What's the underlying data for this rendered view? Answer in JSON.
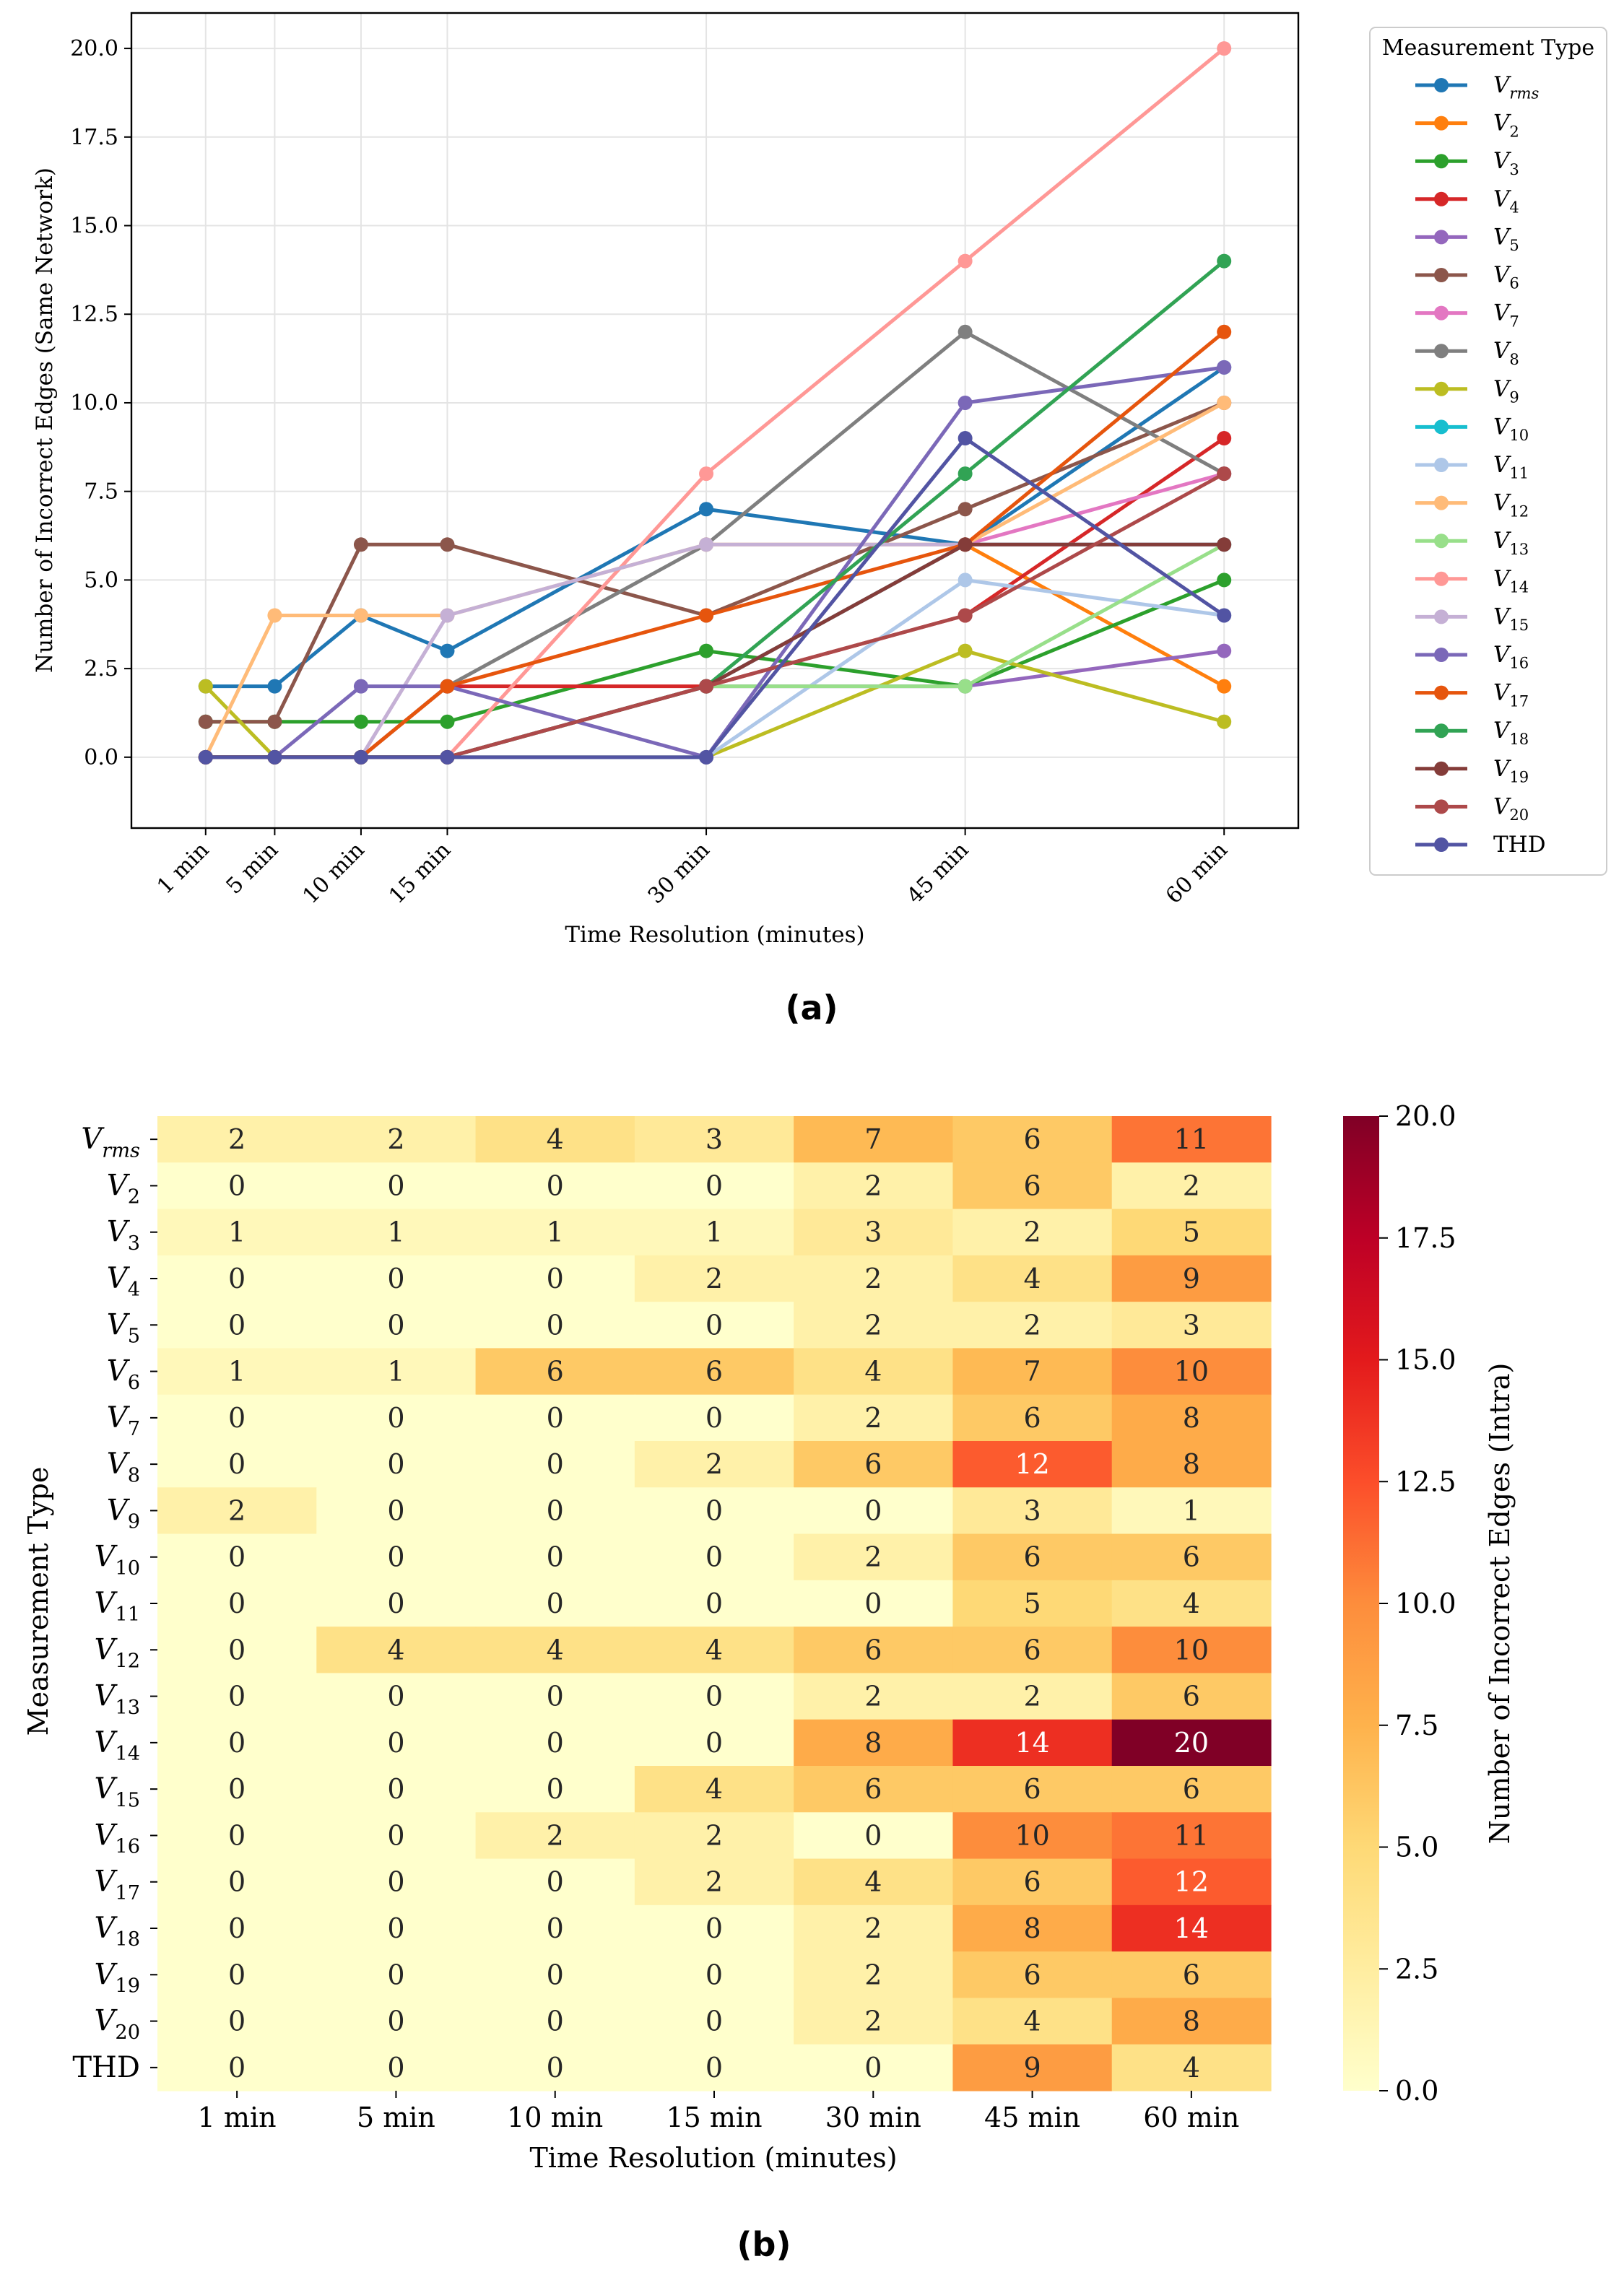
{
  "chart_data": [
    {
      "type": "line",
      "panel_label": "(a)",
      "xlabel": "Time Resolution (minutes)",
      "ylabel": "Number of Incorrect Edges (Same Network)",
      "categories": [
        "1 min",
        "5 min",
        "10 min",
        "15 min",
        "30 min",
        "45 min",
        "60 min"
      ],
      "x": [
        1,
        5,
        10,
        15,
        30,
        45,
        60
      ],
      "ylim": [
        -2,
        21
      ],
      "yticks": [
        "0.0",
        "2.5",
        "5.0",
        "7.5",
        "10.0",
        "12.5",
        "15.0",
        "17.5",
        "20.0"
      ],
      "grid": true,
      "legend_title": "Measurement Type",
      "legend_position": "outside-right",
      "series": [
        {
          "name": "V",
          "sub": "rms",
          "color": "#1f77b4",
          "values": [
            2,
            2,
            4,
            3,
            7,
            6,
            11
          ]
        },
        {
          "name": "V",
          "sub": "2",
          "color": "#ff7f0e",
          "values": [
            0,
            0,
            0,
            0,
            2,
            6,
            2
          ]
        },
        {
          "name": "V",
          "sub": "3",
          "color": "#2ca02c",
          "values": [
            1,
            1,
            1,
            1,
            3,
            2,
            5
          ]
        },
        {
          "name": "V",
          "sub": "4",
          "color": "#d62728",
          "values": [
            0,
            0,
            0,
            2,
            2,
            4,
            9
          ]
        },
        {
          "name": "V",
          "sub": "5",
          "color": "#9467bd",
          "values": [
            0,
            0,
            0,
            0,
            2,
            2,
            3
          ]
        },
        {
          "name": "V",
          "sub": "6",
          "color": "#8c564b",
          "values": [
            1,
            1,
            6,
            6,
            4,
            7,
            10
          ]
        },
        {
          "name": "V",
          "sub": "7",
          "color": "#e377c2",
          "values": [
            0,
            0,
            0,
            0,
            2,
            6,
            8
          ]
        },
        {
          "name": "V",
          "sub": "8",
          "color": "#7f7f7f",
          "values": [
            0,
            0,
            0,
            2,
            6,
            12,
            8
          ]
        },
        {
          "name": "V",
          "sub": "9",
          "color": "#bcbd22",
          "values": [
            2,
            0,
            0,
            0,
            0,
            3,
            1
          ]
        },
        {
          "name": "V",
          "sub": "10",
          "color": "#17becf",
          "values": [
            0,
            0,
            0,
            0,
            2,
            6,
            6
          ]
        },
        {
          "name": "V",
          "sub": "11",
          "color": "#aec7e8",
          "values": [
            0,
            0,
            0,
            0,
            0,
            5,
            4
          ]
        },
        {
          "name": "V",
          "sub": "12",
          "color": "#ffbb78",
          "values": [
            0,
            4,
            4,
            4,
            6,
            6,
            10
          ]
        },
        {
          "name": "V",
          "sub": "13",
          "color": "#98df8a",
          "values": [
            0,
            0,
            0,
            0,
            2,
            2,
            6
          ]
        },
        {
          "name": "V",
          "sub": "14",
          "color": "#ff9896",
          "values": [
            0,
            0,
            0,
            0,
            8,
            14,
            20
          ]
        },
        {
          "name": "V",
          "sub": "15",
          "color": "#c5b0d5",
          "values": [
            0,
            0,
            0,
            4,
            6,
            6,
            6
          ]
        },
        {
          "name": "V",
          "sub": "16",
          "color": "#7b68b8",
          "values": [
            0,
            0,
            2,
            2,
            0,
            10,
            11
          ]
        },
        {
          "name": "V",
          "sub": "17",
          "color": "#e6550d",
          "values": [
            0,
            0,
            0,
            2,
            4,
            6,
            12
          ]
        },
        {
          "name": "V",
          "sub": "18",
          "color": "#31a354",
          "values": [
            0,
            0,
            0,
            0,
            2,
            8,
            14
          ]
        },
        {
          "name": "V",
          "sub": "19",
          "color": "#843c39",
          "values": [
            0,
            0,
            0,
            0,
            2,
            6,
            6
          ]
        },
        {
          "name": "V",
          "sub": "20",
          "color": "#ad494a",
          "values": [
            0,
            0,
            0,
            0,
            2,
            4,
            8
          ]
        },
        {
          "name": "THD",
          "sub": "",
          "color": "#5254a3",
          "values": [
            0,
            0,
            0,
            0,
            0,
            9,
            4
          ]
        }
      ]
    },
    {
      "type": "heatmap",
      "panel_label": "(b)",
      "xlabel": "Time Resolution (minutes)",
      "ylabel": "Measurement Type",
      "colorbar_label": "Number of Incorrect Edges (Intra)",
      "colorbar_range": [
        0,
        20
      ],
      "colorbar_ticks": [
        "0.0",
        "2.5",
        "5.0",
        "7.5",
        "10.0",
        "12.5",
        "15.0",
        "17.5",
        "20.0"
      ],
      "colormap": "YlOrRd",
      "x_categories": [
        "1 min",
        "5 min",
        "10 min",
        "15 min",
        "30 min",
        "45 min",
        "60 min"
      ],
      "rows": [
        {
          "name": "V",
          "sub": "rms"
        },
        {
          "name": "V",
          "sub": "2"
        },
        {
          "name": "V",
          "sub": "3"
        },
        {
          "name": "V",
          "sub": "4"
        },
        {
          "name": "V",
          "sub": "5"
        },
        {
          "name": "V",
          "sub": "6"
        },
        {
          "name": "V",
          "sub": "7"
        },
        {
          "name": "V",
          "sub": "8"
        },
        {
          "name": "V",
          "sub": "9"
        },
        {
          "name": "V",
          "sub": "10"
        },
        {
          "name": "V",
          "sub": "11"
        },
        {
          "name": "V",
          "sub": "12"
        },
        {
          "name": "V",
          "sub": "13"
        },
        {
          "name": "V",
          "sub": "14"
        },
        {
          "name": "V",
          "sub": "15"
        },
        {
          "name": "V",
          "sub": "16"
        },
        {
          "name": "V",
          "sub": "17"
        },
        {
          "name": "V",
          "sub": "18"
        },
        {
          "name": "V",
          "sub": "19"
        },
        {
          "name": "V",
          "sub": "20"
        },
        {
          "name": "THD",
          "sub": ""
        }
      ],
      "values": [
        [
          2,
          2,
          4,
          3,
          7,
          6,
          11
        ],
        [
          0,
          0,
          0,
          0,
          2,
          6,
          2
        ],
        [
          1,
          1,
          1,
          1,
          3,
          2,
          5
        ],
        [
          0,
          0,
          0,
          2,
          2,
          4,
          9
        ],
        [
          0,
          0,
          0,
          0,
          2,
          2,
          3
        ],
        [
          1,
          1,
          6,
          6,
          4,
          7,
          10
        ],
        [
          0,
          0,
          0,
          0,
          2,
          6,
          8
        ],
        [
          0,
          0,
          0,
          2,
          6,
          12,
          8
        ],
        [
          2,
          0,
          0,
          0,
          0,
          3,
          1
        ],
        [
          0,
          0,
          0,
          0,
          2,
          6,
          6
        ],
        [
          0,
          0,
          0,
          0,
          0,
          5,
          4
        ],
        [
          0,
          4,
          4,
          4,
          6,
          6,
          10
        ],
        [
          0,
          0,
          0,
          0,
          2,
          2,
          6
        ],
        [
          0,
          0,
          0,
          0,
          8,
          14,
          20
        ],
        [
          0,
          0,
          0,
          4,
          6,
          6,
          6
        ],
        [
          0,
          0,
          2,
          2,
          0,
          10,
          11
        ],
        [
          0,
          0,
          0,
          2,
          4,
          6,
          12
        ],
        [
          0,
          0,
          0,
          0,
          2,
          8,
          14
        ],
        [
          0,
          0,
          0,
          0,
          2,
          6,
          6
        ],
        [
          0,
          0,
          0,
          0,
          2,
          4,
          8
        ],
        [
          0,
          0,
          0,
          0,
          0,
          9,
          4
        ]
      ]
    }
  ]
}
